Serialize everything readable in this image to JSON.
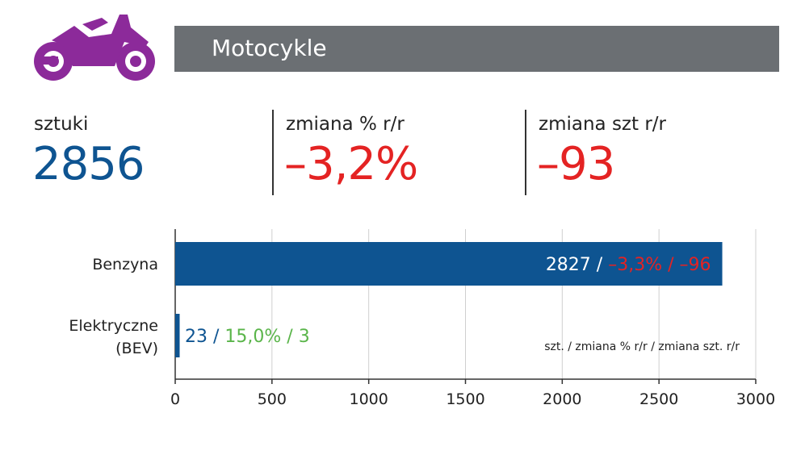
{
  "header": {
    "title": "Motocykle",
    "icon": "motorcycle-icon",
    "icon_color": "#8c2a9a",
    "bar_color": "#6b6f73"
  },
  "stats": [
    {
      "label": "sztuki",
      "value": "2856",
      "color": "#0e5491"
    },
    {
      "label": "zmiana % r/r",
      "value": "–3,2%",
      "color": "#e42323"
    },
    {
      "label": "zmiana szt r/r",
      "value": "–93",
      "color": "#e42323"
    }
  ],
  "chart_data": {
    "type": "bar",
    "orientation": "horizontal",
    "categories": [
      "Benzyna",
      "Elektryczne (BEV)"
    ],
    "category_lines": [
      [
        "Benzyna"
      ],
      [
        "Elektryczne",
        "(BEV)"
      ]
    ],
    "values": [
      2827,
      23
    ],
    "bar_color": "#0e5491",
    "data_labels": [
      {
        "count": "2827",
        "sep1": " / ",
        "pct": "–3,3%",
        "sep2": " / ",
        "diff": "–96",
        "count_color": "#ffffff",
        "change_color": "#e42323"
      },
      {
        "count": "23",
        "sep1": " / ",
        "pct": "15,0%",
        "sep2": " / ",
        "diff": "3",
        "count_color": "#0e5491",
        "change_color": "#5ab54a"
      }
    ],
    "xlim": [
      0,
      3000
    ],
    "xticks": [
      0,
      500,
      1000,
      1500,
      2000,
      2500,
      3000
    ],
    "xtick_labels": [
      "0",
      "500",
      "1000",
      "1500",
      "2000",
      "2500",
      "3000"
    ],
    "grid": true,
    "legend_note": "szt. / zmiana % r/r / zmiana szt. r/r",
    "title": "",
    "xlabel": "",
    "ylabel": ""
  }
}
